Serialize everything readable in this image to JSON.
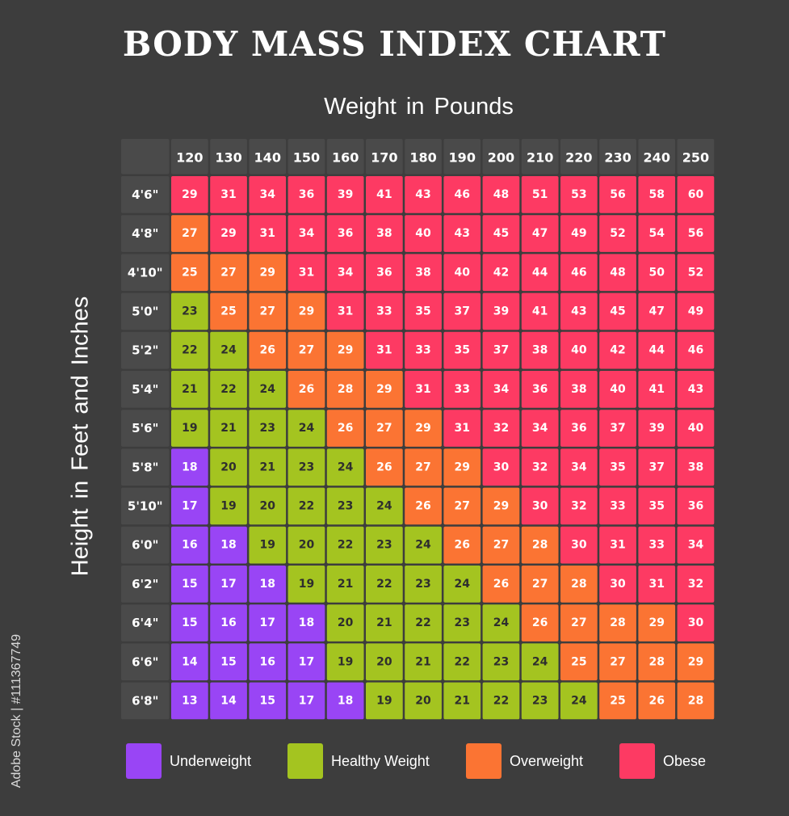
{
  "chart_data": {
    "type": "table",
    "title": "BODY MASS INDEX CHART",
    "xlabel": "Weight in Pounds",
    "ylabel": "Height in Feet and Inches",
    "weights": [
      "120",
      "130",
      "140",
      "150",
      "160",
      "170",
      "180",
      "190",
      "200",
      "210",
      "220",
      "230",
      "240",
      "250"
    ],
    "heights": [
      "4'6\"",
      "4'8\"",
      "4'10\"",
      "5'0\"",
      "5'2\"",
      "5'4\"",
      "5'6\"",
      "5'8\"",
      "5'10\"",
      "6'0\"",
      "6'2\"",
      "6'4\"",
      "6'6\"",
      "6'8\""
    ],
    "values": [
      [
        29,
        31,
        34,
        36,
        39,
        41,
        43,
        46,
        48,
        51,
        53,
        56,
        58,
        60
      ],
      [
        27,
        29,
        31,
        34,
        36,
        38,
        40,
        43,
        45,
        47,
        49,
        52,
        54,
        56
      ],
      [
        25,
        27,
        29,
        31,
        34,
        36,
        38,
        40,
        42,
        44,
        46,
        48,
        50,
        52
      ],
      [
        23,
        25,
        27,
        29,
        31,
        33,
        35,
        37,
        39,
        41,
        43,
        45,
        47,
        49
      ],
      [
        22,
        24,
        26,
        27,
        29,
        31,
        33,
        35,
        37,
        38,
        40,
        42,
        44,
        46
      ],
      [
        21,
        22,
        24,
        26,
        28,
        29,
        31,
        33,
        34,
        36,
        38,
        40,
        41,
        43
      ],
      [
        19,
        21,
        23,
        24,
        26,
        27,
        29,
        31,
        32,
        34,
        36,
        37,
        39,
        40
      ],
      [
        18,
        20,
        21,
        23,
        24,
        26,
        27,
        29,
        30,
        32,
        34,
        35,
        37,
        38
      ],
      [
        17,
        19,
        20,
        22,
        23,
        24,
        26,
        27,
        29,
        30,
        32,
        33,
        35,
        36
      ],
      [
        16,
        18,
        19,
        20,
        22,
        23,
        24,
        26,
        27,
        28,
        30,
        31,
        33,
        34
      ],
      [
        15,
        17,
        18,
        19,
        21,
        22,
        23,
        24,
        26,
        27,
        28,
        30,
        31,
        32
      ],
      [
        15,
        16,
        17,
        18,
        20,
        21,
        22,
        23,
        24,
        26,
        27,
        28,
        29,
        30
      ],
      [
        14,
        15,
        16,
        17,
        19,
        20,
        21,
        22,
        23,
        24,
        25,
        27,
        28,
        29
      ],
      [
        13,
        14,
        15,
        17,
        18,
        19,
        20,
        21,
        22,
        23,
        24,
        25,
        26,
        28
      ]
    ],
    "categories": [
      [
        3,
        3,
        3,
        3,
        3,
        3,
        3,
        3,
        3,
        3,
        3,
        3,
        3,
        3
      ],
      [
        2,
        3,
        3,
        3,
        3,
        3,
        3,
        3,
        3,
        3,
        3,
        3,
        3,
        3
      ],
      [
        2,
        2,
        2,
        3,
        3,
        3,
        3,
        3,
        3,
        3,
        3,
        3,
        3,
        3
      ],
      [
        1,
        2,
        2,
        2,
        3,
        3,
        3,
        3,
        3,
        3,
        3,
        3,
        3,
        3
      ],
      [
        1,
        1,
        2,
        2,
        2,
        3,
        3,
        3,
        3,
        3,
        3,
        3,
        3,
        3
      ],
      [
        1,
        1,
        1,
        2,
        2,
        2,
        3,
        3,
        3,
        3,
        3,
        3,
        3,
        3
      ],
      [
        1,
        1,
        1,
        1,
        2,
        2,
        2,
        3,
        3,
        3,
        3,
        3,
        3,
        3
      ],
      [
        0,
        1,
        1,
        1,
        1,
        2,
        2,
        2,
        3,
        3,
        3,
        3,
        3,
        3
      ],
      [
        0,
        1,
        1,
        1,
        1,
        1,
        2,
        2,
        2,
        3,
        3,
        3,
        3,
        3
      ],
      [
        0,
        0,
        1,
        1,
        1,
        1,
        1,
        2,
        2,
        2,
        3,
        3,
        3,
        3
      ],
      [
        0,
        0,
        0,
        1,
        1,
        1,
        1,
        1,
        2,
        2,
        2,
        3,
        3,
        3
      ],
      [
        0,
        0,
        0,
        0,
        1,
        1,
        1,
        1,
        1,
        2,
        2,
        2,
        2,
        3
      ],
      [
        0,
        0,
        0,
        0,
        1,
        1,
        1,
        1,
        1,
        1,
        2,
        2,
        2,
        2
      ],
      [
        0,
        0,
        0,
        0,
        0,
        1,
        1,
        1,
        1,
        1,
        1,
        2,
        2,
        2
      ]
    ],
    "legend": [
      {
        "label": "Underweight",
        "color": "#9945f5"
      },
      {
        "label": "Healthy Weight",
        "color": "#a4c420"
      },
      {
        "label": "Overweight",
        "color": "#fb7433"
      },
      {
        "label": "Obese",
        "color": "#fd3a63"
      }
    ],
    "colors": {
      "header_cell": "#4a4a4a",
      "header_text": "#ffffff",
      "cell_text_dark": "#2e2e2e",
      "cell_text_light": "#ffffff"
    }
  },
  "watermark": "Adobe Stock | #111367749"
}
